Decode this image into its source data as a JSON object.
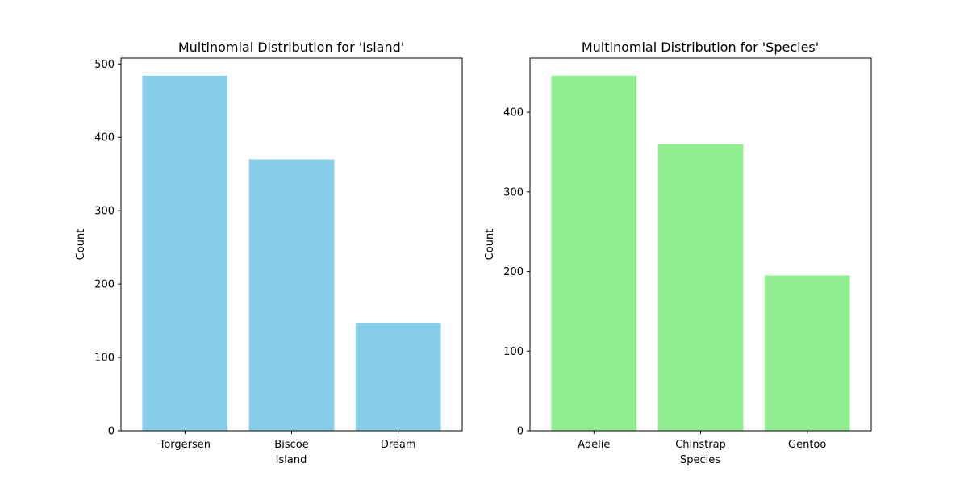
{
  "chart_data": [
    {
      "type": "bar",
      "title": "Multinomial Distribution for 'Island'",
      "xlabel": "Island",
      "ylabel": "Count",
      "categories": [
        "Torgersen",
        "Biscoe",
        "Dream"
      ],
      "values": [
        484,
        370,
        147
      ],
      "ylim": [
        0,
        508
      ],
      "yticks": [
        0,
        100,
        200,
        300,
        400,
        500
      ],
      "color": "#87ceeb",
      "grid": false
    },
    {
      "type": "bar",
      "title": "Multinomial Distribution for 'Species'",
      "xlabel": "Species",
      "ylabel": "Count",
      "categories": [
        "Adelie",
        "Chinstrap",
        "Gentoo"
      ],
      "values": [
        446,
        360,
        195
      ],
      "ylim": [
        0,
        468
      ],
      "yticks": [
        0,
        100,
        200,
        300,
        400
      ],
      "color": "#90ee90",
      "grid": false
    }
  ]
}
